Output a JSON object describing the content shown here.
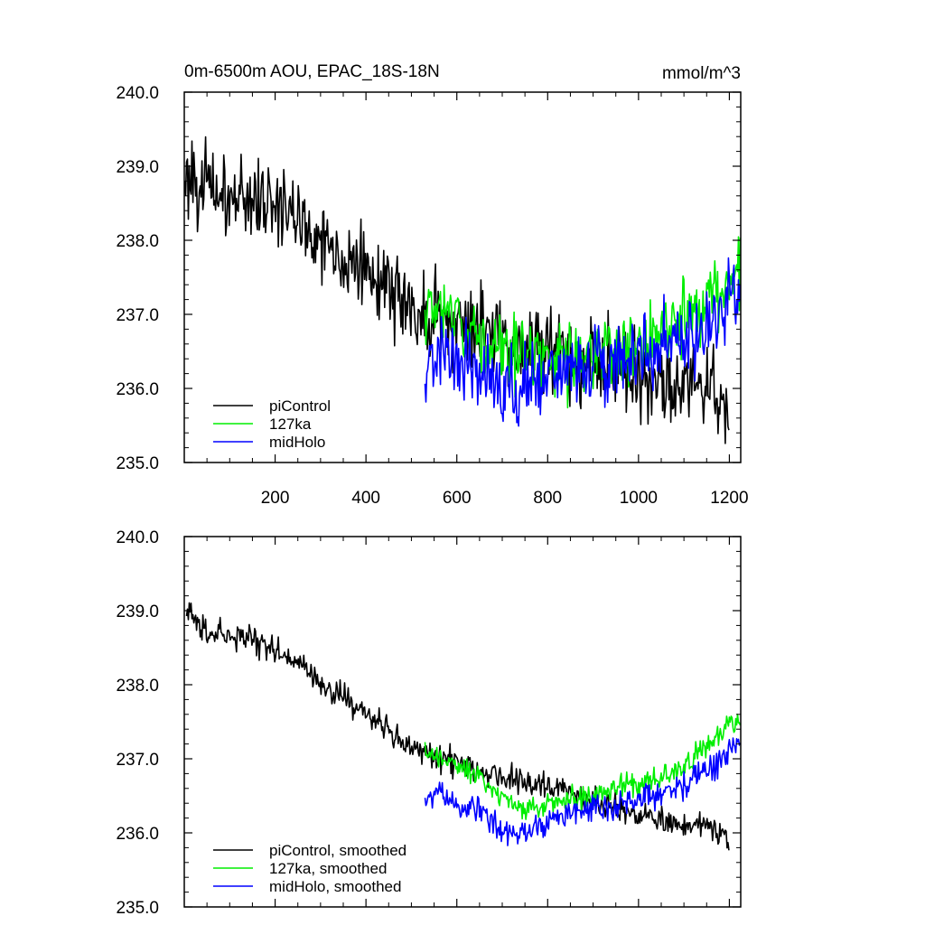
{
  "chart_data": [
    {
      "type": "line",
      "panel": "top",
      "title": "0m-6500m AOU, EPAC_18S-18N",
      "units_label": "mmol/m^3",
      "xlabel": "",
      "ylabel": "",
      "xlim": [
        0,
        1225
      ],
      "ylim": [
        235.0,
        240.0
      ],
      "x_ticks": [
        200,
        400,
        600,
        800,
        1000,
        1200
      ],
      "x_tick_labels": [
        "200",
        "400",
        "600",
        "800",
        "1000",
        "1200"
      ],
      "y_ticks": [
        235.0,
        236.0,
        237.0,
        238.0,
        239.0,
        240.0
      ],
      "y_tick_labels": [
        "235.0",
        "236.0",
        "237.0",
        "238.0",
        "239.0",
        "240.0"
      ],
      "grid": false,
      "legend_position": "bottom-left",
      "series": [
        {
          "name": "piControl",
          "color": "#000000",
          "noise": 0.28,
          "anchors_x": [
            1,
            10,
            50,
            100,
            150,
            200,
            250,
            300,
            350,
            400,
            450,
            500,
            530,
            600,
            650,
            700,
            750,
            800,
            850,
            900,
            950,
            1000,
            1050,
            1100,
            1150,
            1190,
            1200
          ],
          "anchors_y": [
            238.7,
            238.95,
            238.7,
            238.55,
            238.6,
            238.5,
            238.3,
            238.0,
            237.8,
            237.55,
            237.35,
            237.1,
            237.0,
            236.85,
            236.8,
            236.7,
            236.6,
            236.55,
            236.45,
            236.4,
            236.3,
            236.2,
            236.1,
            236.05,
            236.1,
            235.9,
            235.7
          ]
        },
        {
          "name": "127ka",
          "color": "#00ee00",
          "noise": 0.24,
          "anchors_x": [
            530,
            600,
            650,
            700,
            750,
            800,
            850,
            900,
            950,
            1000,
            1050,
            1100,
            1150,
            1200,
            1225
          ],
          "anchors_y": [
            237.15,
            236.95,
            236.75,
            236.55,
            236.45,
            236.4,
            236.4,
            236.45,
            236.55,
            236.65,
            236.75,
            236.9,
            237.2,
            237.45,
            237.55
          ]
        },
        {
          "name": "midHolo",
          "color": "#0000ff",
          "noise": 0.26,
          "anchors_x": [
            530,
            560,
            600,
            650,
            700,
            750,
            800,
            850,
            900,
            950,
            1000,
            1050,
            1100,
            1150,
            1200,
            1225
          ],
          "anchors_y": [
            236.35,
            236.5,
            236.35,
            236.25,
            236.05,
            236.0,
            236.1,
            236.25,
            236.35,
            236.4,
            236.5,
            236.55,
            236.65,
            236.85,
            237.15,
            237.3
          ]
        }
      ],
      "legend": [
        "piControl",
        "127ka",
        "midHolo"
      ]
    },
    {
      "type": "line",
      "panel": "bottom",
      "title": "",
      "xlabel": "",
      "ylabel": "",
      "xlim": [
        0,
        1225
      ],
      "ylim": [
        235.0,
        240.0
      ],
      "x_ticks": [
        200,
        400,
        600,
        800,
        1000,
        1200
      ],
      "y_ticks": [
        235.0,
        236.0,
        237.0,
        238.0,
        239.0,
        240.0
      ],
      "y_tick_labels": [
        "235.0",
        "236.0",
        "237.0",
        "238.0",
        "239.0",
        "240.0"
      ],
      "grid": false,
      "legend_position": "bottom-left",
      "series": [
        {
          "name": "piControl, smoothed",
          "color": "#000000",
          "noise": 0.09,
          "anchors_x": [
            5,
            10,
            50,
            100,
            150,
            200,
            250,
            300,
            350,
            400,
            450,
            500,
            530,
            600,
            650,
            700,
            750,
            800,
            850,
            900,
            950,
            1000,
            1050,
            1100,
            1150,
            1190,
            1200
          ],
          "anchors_y": [
            238.9,
            238.95,
            238.75,
            238.65,
            238.6,
            238.45,
            238.3,
            238.0,
            237.85,
            237.6,
            237.4,
            237.15,
            237.05,
            236.95,
            236.85,
            236.8,
            236.7,
            236.6,
            236.55,
            236.45,
            236.35,
            236.25,
            236.15,
            236.1,
            236.1,
            236.0,
            235.8
          ]
        },
        {
          "name": "127ka, smoothed",
          "color": "#00ee00",
          "noise": 0.08,
          "anchors_x": [
            530,
            600,
            650,
            700,
            750,
            800,
            850,
            900,
            950,
            1000,
            1050,
            1100,
            1150,
            1200,
            1225
          ],
          "anchors_y": [
            237.1,
            236.95,
            236.75,
            236.5,
            236.35,
            236.4,
            236.45,
            236.5,
            236.6,
            236.65,
            236.75,
            236.9,
            237.2,
            237.45,
            237.55
          ]
        },
        {
          "name": "midHolo, smoothed",
          "color": "#0000ff",
          "noise": 0.09,
          "anchors_x": [
            530,
            560,
            600,
            650,
            700,
            750,
            800,
            850,
            900,
            950,
            1000,
            1050,
            1100,
            1150,
            1200,
            1225
          ],
          "anchors_y": [
            236.4,
            236.55,
            236.4,
            236.3,
            236.0,
            236.0,
            236.15,
            236.3,
            236.35,
            236.35,
            236.45,
            236.5,
            236.65,
            236.85,
            237.1,
            237.3
          ]
        }
      ],
      "legend": [
        "piControl, smoothed",
        "127ka, smoothed",
        "midHolo, smoothed"
      ]
    }
  ]
}
